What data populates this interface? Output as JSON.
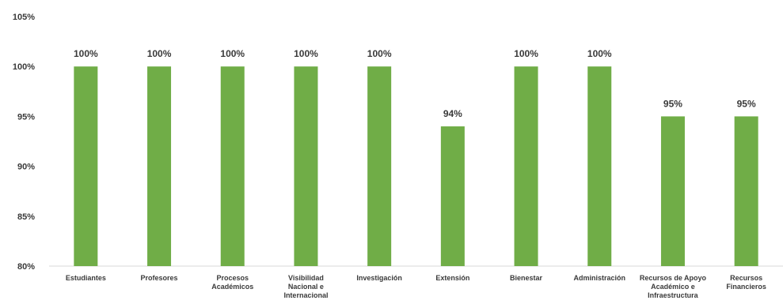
{
  "chart_data": {
    "type": "bar",
    "categories": [
      [
        "Estudiantes"
      ],
      [
        "Profesores"
      ],
      [
        "Procesos",
        "Académicos"
      ],
      [
        "Visibilidad",
        "Nacional e",
        "Internacional"
      ],
      [
        "Investigación"
      ],
      [
        "Extensión"
      ],
      [
        "Bienestar"
      ],
      [
        "Administración"
      ],
      [
        "Recursos de Apoyo",
        "Académico e",
        "Infraestructura"
      ],
      [
        "Recursos",
        "Financieros"
      ]
    ],
    "values": [
      100,
      100,
      100,
      100,
      100,
      94,
      100,
      100,
      95,
      95
    ],
    "data_labels": [
      "100%",
      "100%",
      "100%",
      "100%",
      "100%",
      "94%",
      "100%",
      "100%",
      "95%",
      "95%"
    ],
    "ylim": [
      80,
      105
    ],
    "yticks": [
      80,
      85,
      90,
      95,
      100,
      105
    ],
    "ytick_labels": [
      "80%",
      "85%",
      "90%",
      "95%",
      "100%",
      "105%"
    ],
    "bar_color": "#70ad47",
    "grid": false,
    "legend": "none"
  }
}
